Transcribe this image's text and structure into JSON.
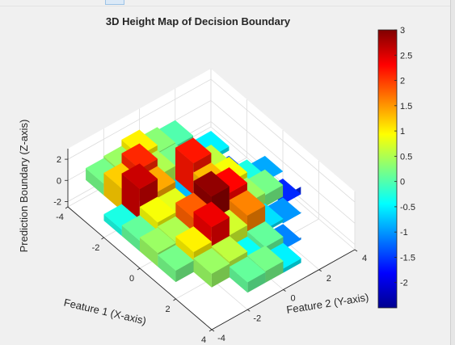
{
  "chart_data": {
    "type": "surface",
    "title": "3D Height Map of Decision Boundary",
    "xlabel": "Feature 1 (X-axis)",
    "ylabel": "Feature 2 (Y-axis)",
    "zlabel": "Prediction Boundary (Z-axis)",
    "xlim": [
      -4,
      4
    ],
    "ylim": [
      -4,
      4
    ],
    "zlim": [
      -2.5,
      3
    ],
    "x_ticks": [
      "-4",
      "-2",
      "0",
      "2",
      "4"
    ],
    "y_ticks": [
      "-4",
      "-2",
      "0",
      "2",
      "4"
    ],
    "z_ticks": [
      "-2",
      "0",
      "2"
    ],
    "colormap": "jet",
    "colorbar": {
      "ticks": [
        "-2",
        "-1.5",
        "-1",
        "-0.5",
        "0",
        "0.5",
        "1",
        "1.5",
        "2",
        "2.5",
        "3"
      ],
      "range": [
        -2.5,
        3
      ]
    },
    "grid": true,
    "grid_x": [
      -3.5,
      -2.5,
      -1.5,
      -0.5,
      0.5,
      1.5,
      2.5,
      3.5
    ],
    "grid_y": [
      -3.5,
      -2.5,
      -1.5,
      -0.5,
      0.5,
      1.5,
      2.5,
      3.5
    ],
    "z": [
      [
        null,
        null,
        -0.3,
        0.1,
        0.4,
        0.2,
        null,
        null
      ],
      [
        0.2,
        1.2,
        2.6,
        0.9,
        0.5,
        1.0,
        0.4,
        null
      ],
      [
        0.4,
        2.1,
        1.4,
        0.8,
        1.8,
        2.4,
        0.6,
        0.1
      ],
      [
        1.0,
        0.5,
        -0.8,
        -2.0,
        2.9,
        0.7,
        -0.4,
        0.2
      ],
      [
        0.3,
        0.2,
        2.2,
        1.3,
        2.3,
        1.6,
        0.1,
        -0.5
      ],
      [
        0.0,
        -0.4,
        0.6,
        0.9,
        0.4,
        -0.6,
        -1.1,
        null
      ],
      [
        null,
        -0.5,
        -1.4,
        -0.3,
        0.2,
        -1.0,
        null,
        null
      ],
      [
        null,
        null,
        null,
        -0.9,
        -1.6,
        null,
        null,
        null
      ]
    ]
  }
}
